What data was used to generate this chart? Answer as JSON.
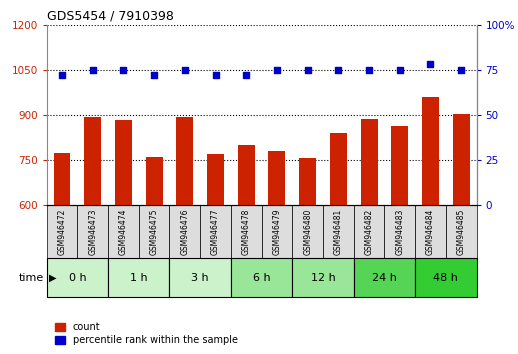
{
  "title": "GDS5454 / 7910398",
  "samples": [
    "GSM946472",
    "GSM946473",
    "GSM946474",
    "GSM946475",
    "GSM946476",
    "GSM946477",
    "GSM946478",
    "GSM946479",
    "GSM946480",
    "GSM946481",
    "GSM946482",
    "GSM946483",
    "GSM946484",
    "GSM946485"
  ],
  "counts": [
    775,
    893,
    885,
    762,
    893,
    772,
    800,
    780,
    758,
    840,
    888,
    865,
    960,
    905
  ],
  "percentile_ranks": [
    72,
    75,
    75,
    72,
    75,
    72,
    72,
    75,
    75,
    75,
    75,
    75,
    78,
    75
  ],
  "groups": [
    {
      "label": "0 h",
      "indices": [
        0,
        1
      ],
      "color": "#ccf2cc"
    },
    {
      "label": "1 h",
      "indices": [
        2,
        3
      ],
      "color": "#ccf2cc"
    },
    {
      "label": "3 h",
      "indices": [
        4,
        5
      ],
      "color": "#ccf2cc"
    },
    {
      "label": "6 h",
      "indices": [
        6,
        7
      ],
      "color": "#99e699"
    },
    {
      "label": "12 h",
      "indices": [
        8,
        9
      ],
      "color": "#99e699"
    },
    {
      "label": "24 h",
      "indices": [
        10,
        11
      ],
      "color": "#55d455"
    },
    {
      "label": "48 h",
      "indices": [
        12,
        13
      ],
      "color": "#33cc33"
    }
  ],
  "ylim_left": [
    600,
    1200
  ],
  "ylim_right": [
    0,
    100
  ],
  "yticks_left": [
    600,
    750,
    900,
    1050,
    1200
  ],
  "yticks_right": [
    0,
    25,
    50,
    75,
    100
  ],
  "bar_color": "#cc2200",
  "dot_color": "#0000cc",
  "grid_color": "#000000",
  "bg_color": "#ffffff",
  "tick_label_color_left": "#cc2200",
  "tick_label_color_right": "#0000cc",
  "bar_width": 0.55,
  "sample_box_color": "#dddddd",
  "time_label": "time"
}
